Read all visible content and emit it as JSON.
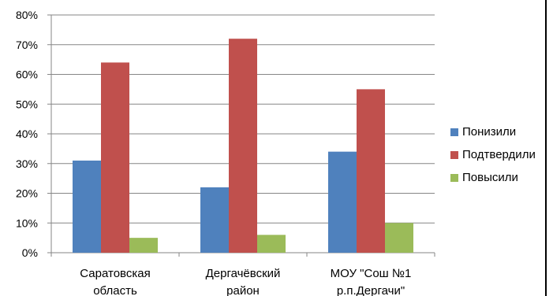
{
  "chart_data": {
    "type": "bar",
    "categories": [
      [
        "Саратовская",
        "область"
      ],
      [
        "Дергачёвский",
        "район"
      ],
      [
        "МОУ \"Сош №1",
        "р.п.Дергачи\""
      ]
    ],
    "series": [
      {
        "name": "Понизили",
        "color": "#4F81BD",
        "values": [
          31,
          22,
          34
        ]
      },
      {
        "name": "Подтвердили",
        "color": "#C0504D",
        "values": [
          64,
          72,
          55
        ]
      },
      {
        "name": "Повысили",
        "color": "#9BBB59",
        "values": [
          5,
          6,
          10
        ]
      }
    ],
    "ylim": [
      0,
      80
    ],
    "yticks": [
      0,
      10,
      20,
      30,
      40,
      50,
      60,
      70,
      80
    ],
    "ytick_labels": [
      "0%",
      "10%",
      "20%",
      "30%",
      "40%",
      "50%",
      "60%",
      "70%",
      "80%"
    ],
    "grid": true,
    "legend_position": "right"
  }
}
